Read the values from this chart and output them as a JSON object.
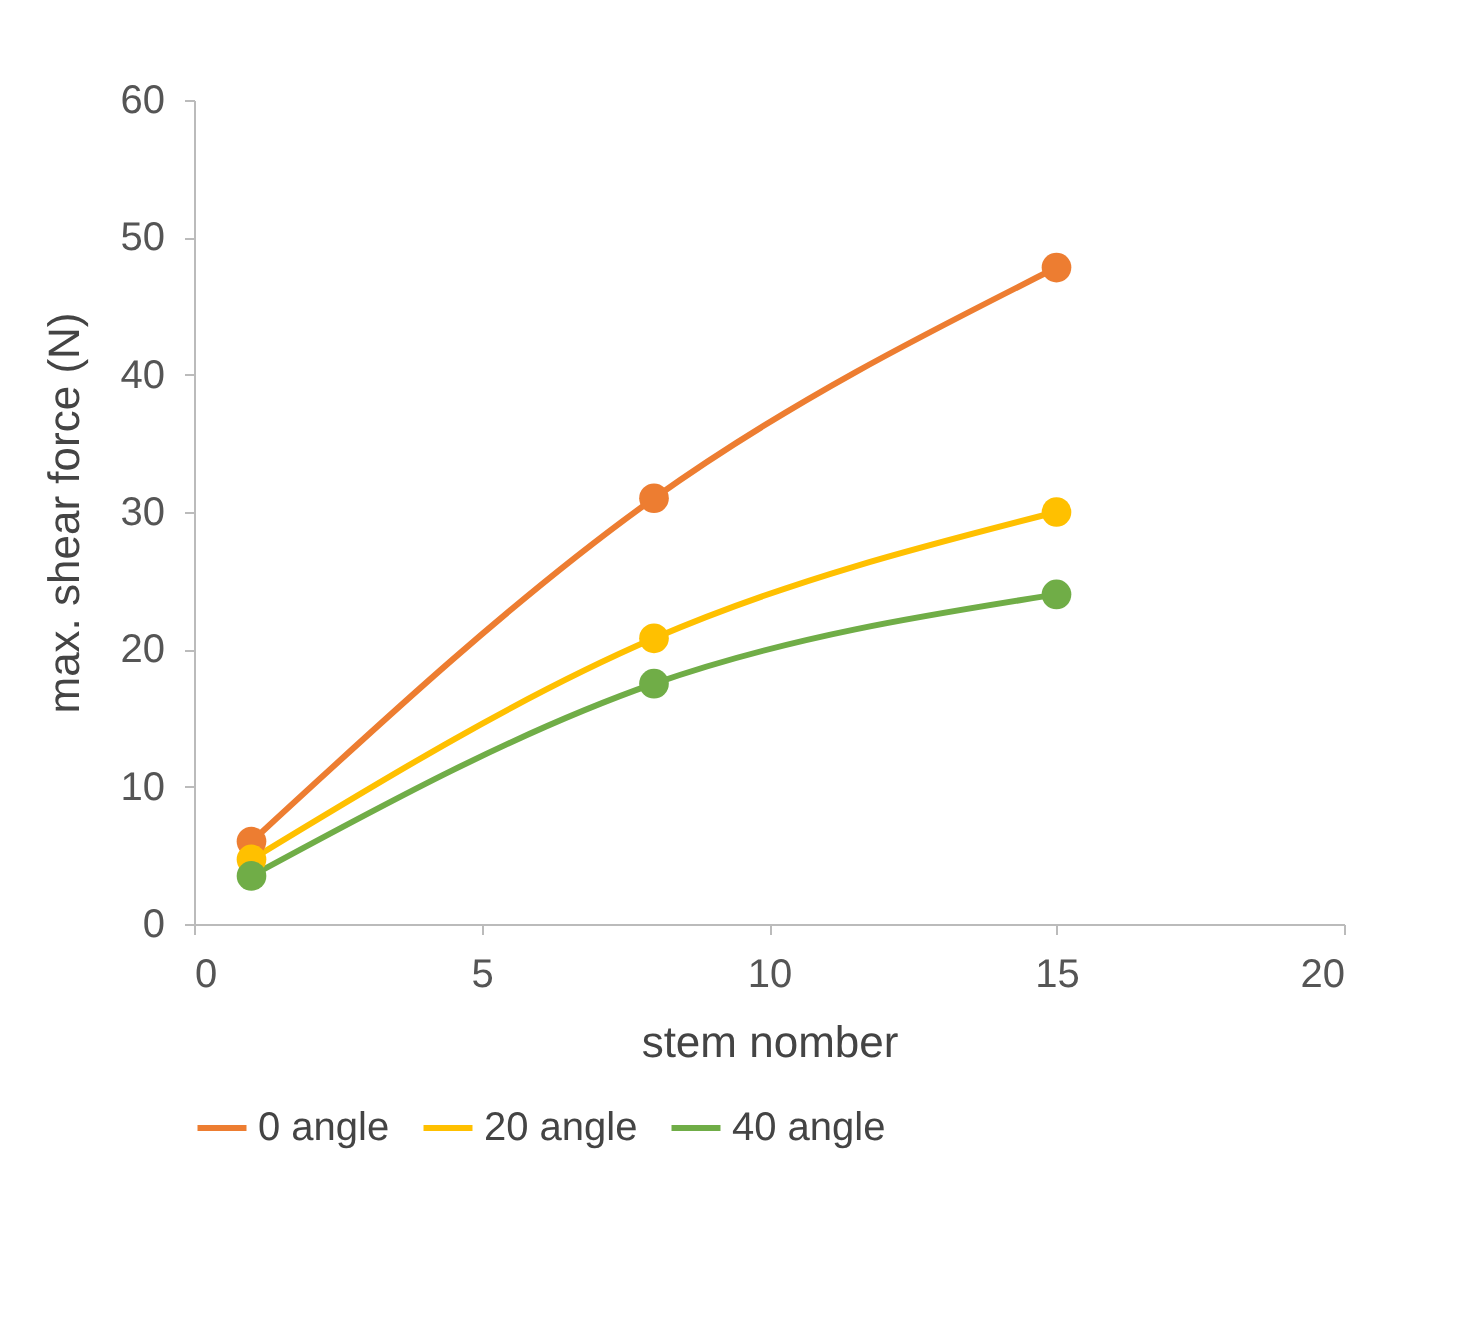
{
  "chart_data": {
    "type": "line",
    "xlabel": "stem nomber",
    "ylabel": "max. shear force (N)",
    "x": [
      1,
      8,
      15
    ],
    "series": [
      {
        "name": "0 angle",
        "color": "#ed7d31",
        "values": [
          6,
          31,
          47.8
        ]
      },
      {
        "name": "20 angle",
        "color": "#ffc000",
        "values": [
          4.7,
          20.8,
          30
        ]
      },
      {
        "name": "40 angle",
        "color": "#70ad47",
        "values": [
          3.5,
          17.5,
          24
        ]
      }
    ],
    "xlim": [
      0,
      20
    ],
    "xticks": [
      0,
      5,
      10,
      15,
      20
    ],
    "ylim": [
      0,
      60
    ],
    "yticks": [
      0,
      10,
      20,
      30,
      40,
      50,
      60
    ],
    "grid": false,
    "legend": "bottom",
    "marker": "circle",
    "line_style": "solid"
  }
}
